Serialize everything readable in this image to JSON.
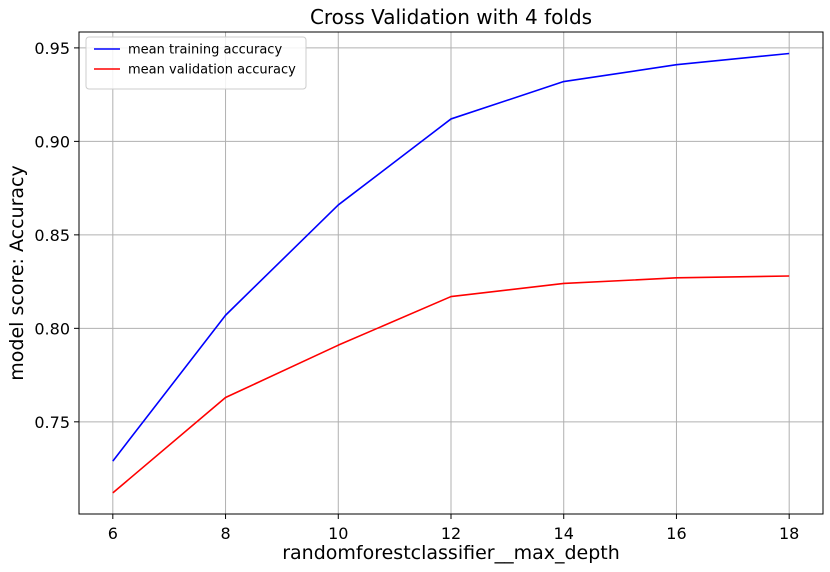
{
  "chart_data": {
    "type": "line",
    "title": "Cross Validation with 4 folds",
    "xlabel": "randomforestclassifier__max_depth",
    "ylabel": "model score: Accuracy",
    "x": [
      6,
      8,
      10,
      12,
      14,
      16,
      18
    ],
    "xticks": [
      6,
      8,
      10,
      12,
      14,
      16,
      18
    ],
    "xlim": [
      5.4,
      18.6
    ],
    "yticks": [
      0.75,
      0.8,
      0.85,
      0.9,
      0.95
    ],
    "ytick_labels": [
      "0.75",
      "0.80",
      "0.85",
      "0.90",
      "0.95"
    ],
    "ylim": [
      0.7007,
      0.9585
    ],
    "grid": true,
    "legend_position": "top-left",
    "series": [
      {
        "name": "mean training accuracy",
        "color": "#0000ff",
        "values": [
          0.729,
          0.807,
          0.866,
          0.912,
          0.932,
          0.941,
          0.947
        ]
      },
      {
        "name": "mean validation accuracy",
        "color": "#ff0000",
        "values": [
          0.712,
          0.763,
          0.791,
          0.817,
          0.824,
          0.827,
          0.828
        ]
      }
    ]
  }
}
